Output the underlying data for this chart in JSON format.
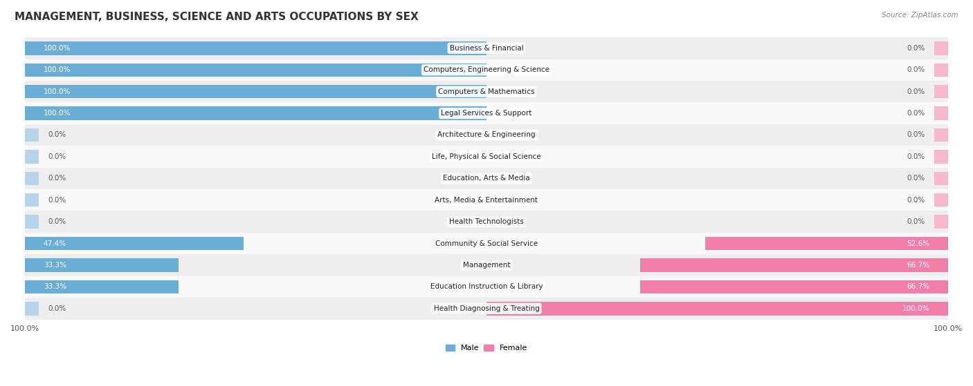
{
  "title": "MANAGEMENT, BUSINESS, SCIENCE AND ARTS OCCUPATIONS BY SEX",
  "source": "Source: ZipAtlas.com",
  "categories": [
    "Business & Financial",
    "Computers, Engineering & Science",
    "Computers & Mathematics",
    "Legal Services & Support",
    "Architecture & Engineering",
    "Life, Physical & Social Science",
    "Education, Arts & Media",
    "Arts, Media & Entertainment",
    "Health Technologists",
    "Community & Social Service",
    "Management",
    "Education Instruction & Library",
    "Health Diagnosing & Treating"
  ],
  "male": [
    100.0,
    100.0,
    100.0,
    100.0,
    0.0,
    0.0,
    0.0,
    0.0,
    0.0,
    47.4,
    33.3,
    33.3,
    0.0
  ],
  "female": [
    0.0,
    0.0,
    0.0,
    0.0,
    0.0,
    0.0,
    0.0,
    0.0,
    0.0,
    52.6,
    66.7,
    66.7,
    100.0
  ],
  "male_color_full": "#6aaed6",
  "female_color_full": "#f07faa",
  "male_color_zero": "#b8d4e8",
  "female_color_zero": "#f5b8ce",
  "bg_row_alt": "#eeeeee",
  "bg_row_white": "#f8f8f8",
  "label_color": "#555555",
  "title_fontsize": 11,
  "label_fontsize": 7.5,
  "tick_fontsize": 8,
  "pct_label_fontsize": 7.5
}
